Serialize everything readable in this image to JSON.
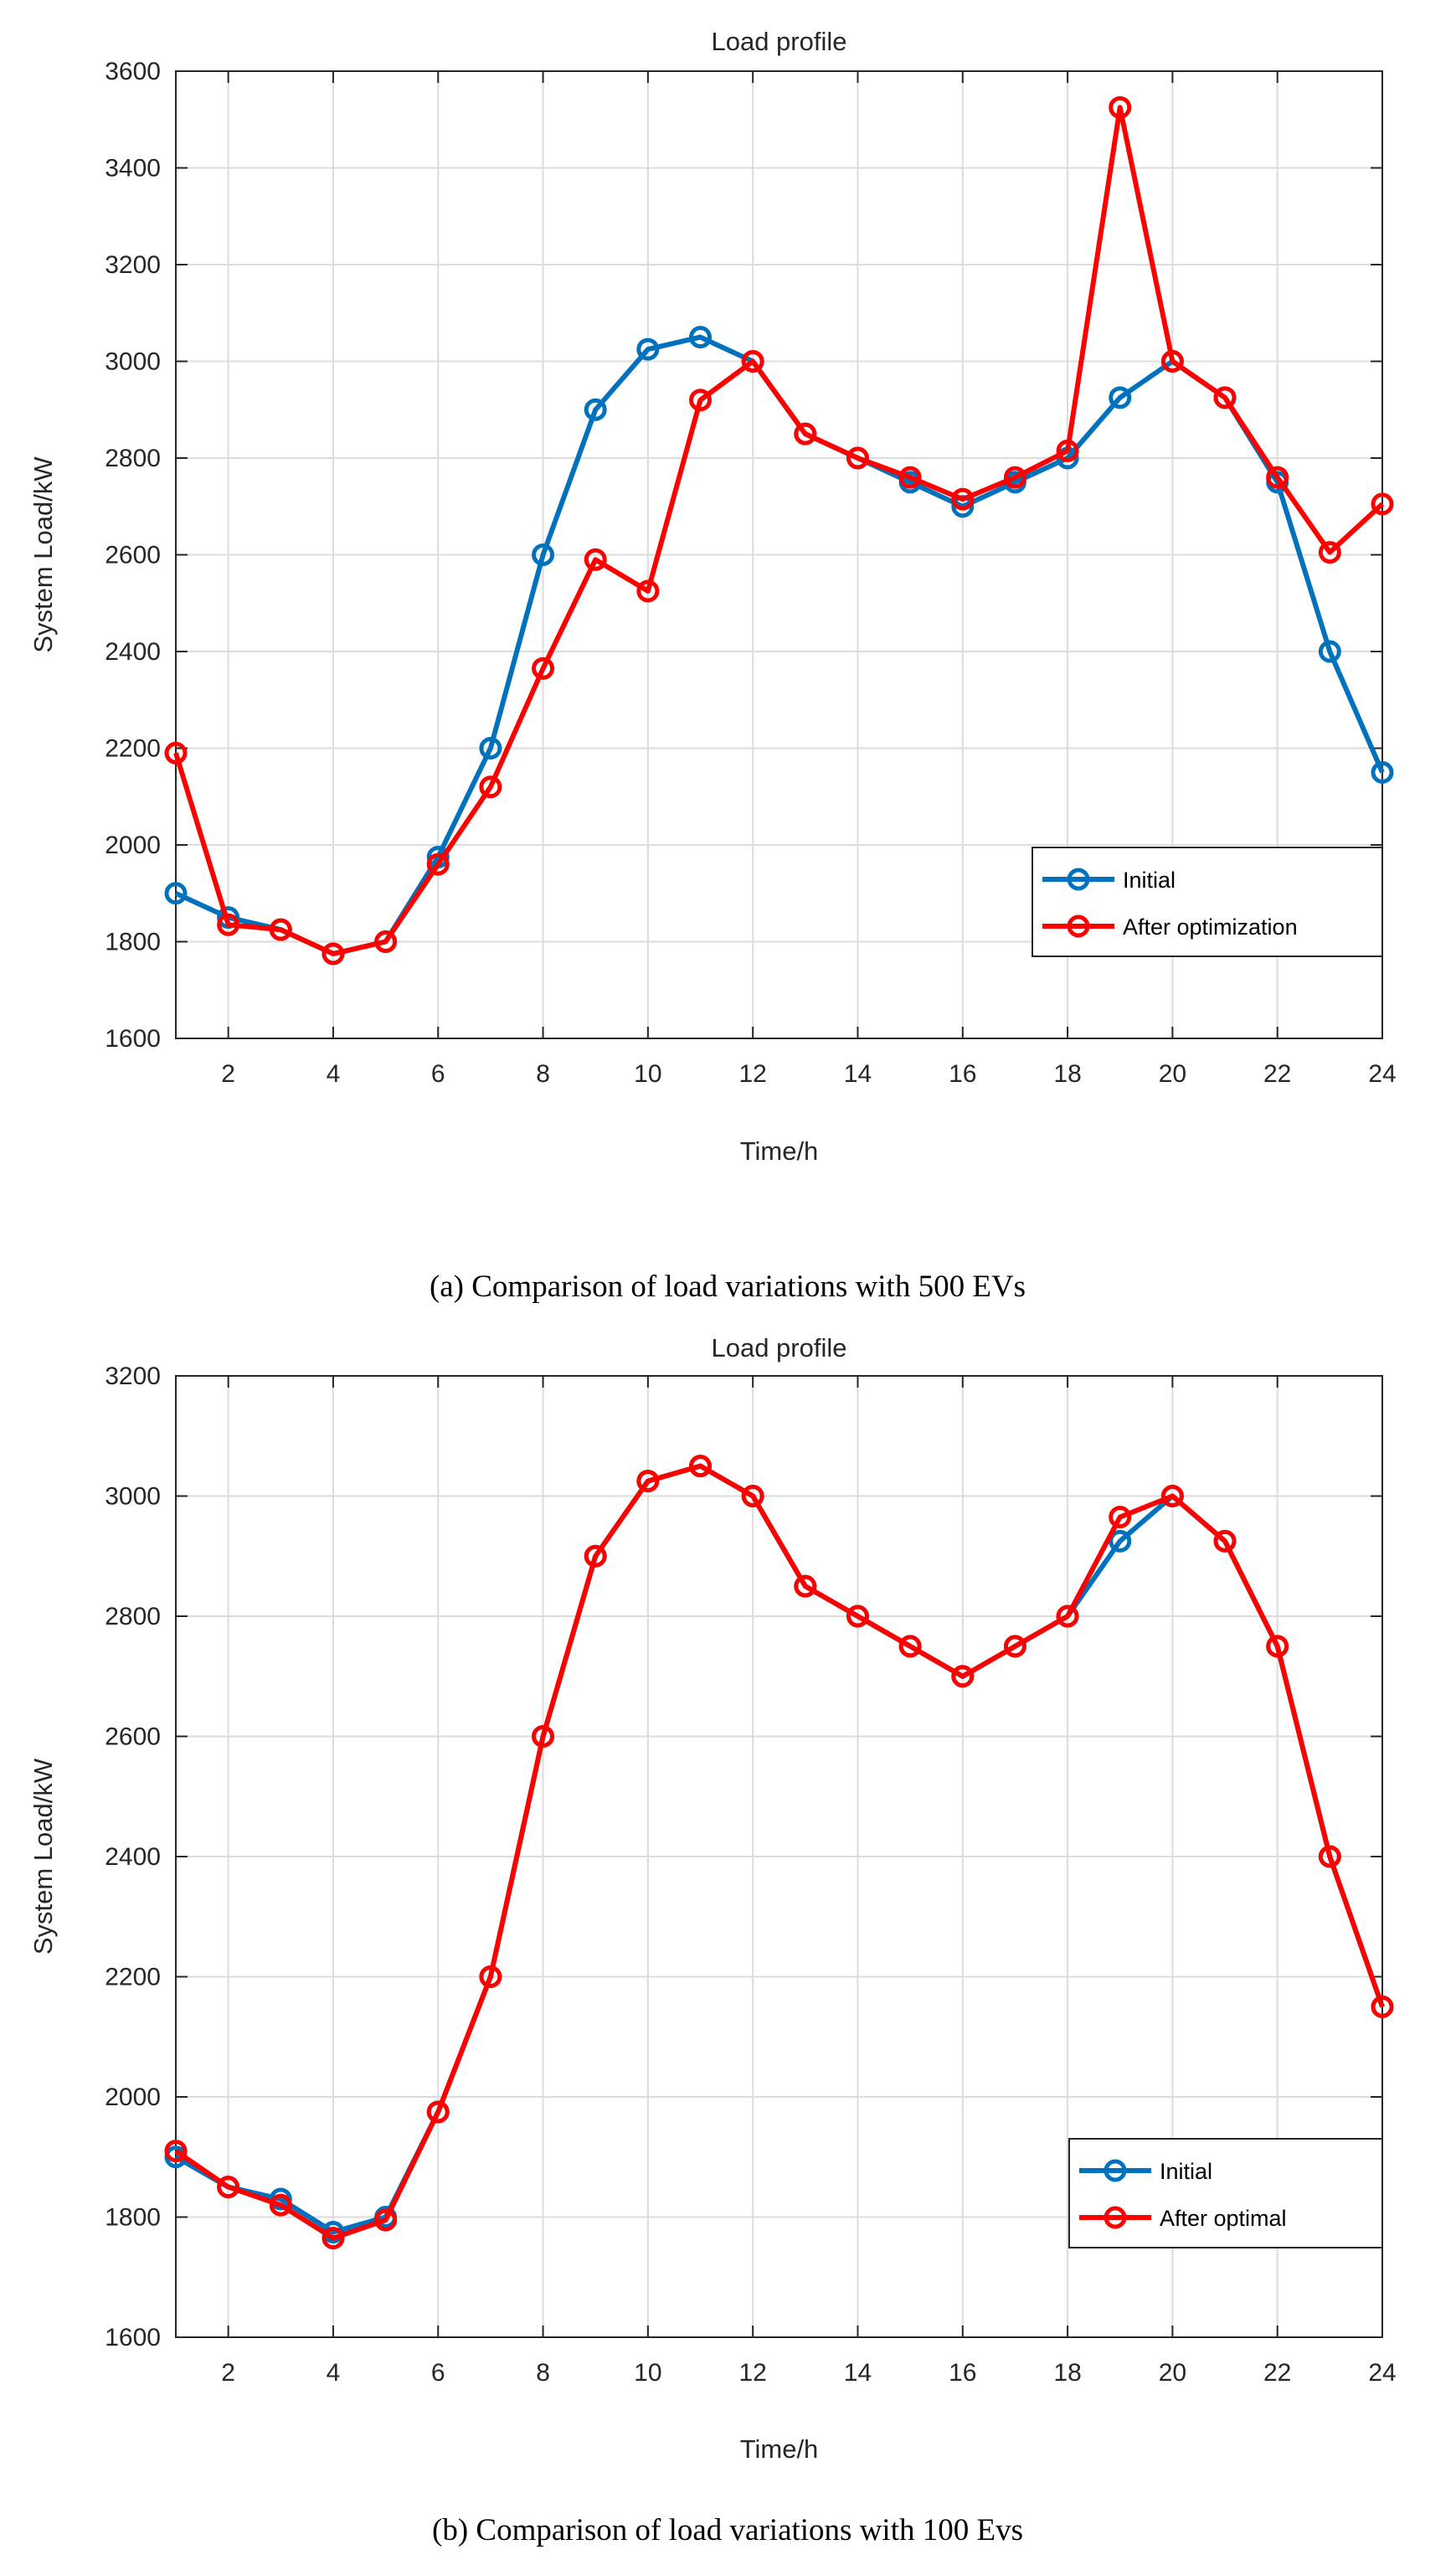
{
  "chart_data": [
    {
      "type": "line",
      "panel": "a",
      "title": "Load profile",
      "xlabel": "Time/h",
      "ylabel": "System Load/kW",
      "xlim": [
        1,
        24
      ],
      "ylim": [
        1600,
        3600
      ],
      "xticks": [
        2,
        4,
        6,
        8,
        10,
        12,
        14,
        16,
        18,
        20,
        22,
        24
      ],
      "yticks": [
        1600,
        1800,
        2000,
        2200,
        2400,
        2600,
        2800,
        3000,
        3200,
        3400,
        3600
      ],
      "x": [
        1,
        2,
        3,
        4,
        5,
        6,
        7,
        8,
        9,
        10,
        11,
        12,
        13,
        14,
        15,
        16,
        17,
        18,
        19,
        20,
        21,
        22,
        23,
        24
      ],
      "grid": true,
      "legend_position": "bottom-right",
      "series": [
        {
          "name": "Initial",
          "color": "#0072BD",
          "values": [
            1900,
            1850,
            1825,
            1775,
            1800,
            1975,
            2200,
            2600,
            2900,
            3025,
            3050,
            3000,
            2850,
            2800,
            2750,
            2700,
            2750,
            2800,
            2925,
            3000,
            2925,
            2750,
            2400,
            2150
          ]
        },
        {
          "name": "After optimization",
          "color": "#FF0000",
          "values": [
            2190,
            1835,
            1825,
            1775,
            1800,
            1960,
            2120,
            2365,
            2590,
            2525,
            2920,
            3000,
            2850,
            2800,
            2760,
            2715,
            2760,
            2815,
            3525,
            3000,
            2925,
            2760,
            2605,
            2705
          ]
        }
      ],
      "caption": "(a) Comparison of load variations with 500 EVs"
    },
    {
      "type": "line",
      "panel": "b",
      "title": "Load profile",
      "xlabel": "Time/h",
      "ylabel": "System Load/kW",
      "xlim": [
        1,
        24
      ],
      "ylim": [
        1600,
        3200
      ],
      "xticks": [
        2,
        4,
        6,
        8,
        10,
        12,
        14,
        16,
        18,
        20,
        22,
        24
      ],
      "yticks": [
        1600,
        1800,
        2000,
        2200,
        2400,
        2600,
        2800,
        3000,
        3200
      ],
      "x": [
        1,
        2,
        3,
        4,
        5,
        6,
        7,
        8,
        9,
        10,
        11,
        12,
        13,
        14,
        15,
        16,
        17,
        18,
        19,
        20,
        21,
        22,
        23,
        24
      ],
      "grid": true,
      "legend_position": "bottom-right",
      "series": [
        {
          "name": "Initial",
          "color": "#0072BD",
          "values": [
            1900,
            1850,
            1830,
            1775,
            1800,
            1975,
            2200,
            2600,
            2900,
            3025,
            3050,
            3000,
            2850,
            2800,
            2750,
            2700,
            2750,
            2800,
            2925,
            3000,
            2925,
            2750,
            2400,
            2150
          ]
        },
        {
          "name": "After optimal",
          "color": "#FF0000",
          "values": [
            1910,
            1850,
            1820,
            1765,
            1795,
            1975,
            2200,
            2600,
            2900,
            3025,
            3050,
            3000,
            2850,
            2800,
            2750,
            2700,
            2750,
            2800,
            2965,
            3000,
            2925,
            2750,
            2400,
            2150
          ]
        }
      ],
      "caption": "(b) Comparison of load variations with 100 Evs"
    }
  ]
}
